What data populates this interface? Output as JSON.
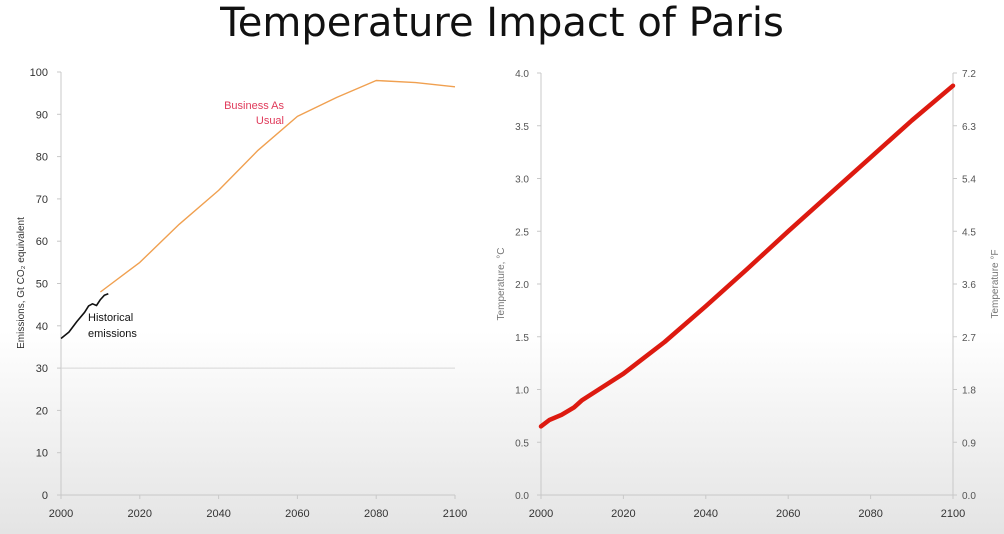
{
  "slide": {
    "title": "Temperature Impact of Paris"
  },
  "chart_data": [
    {
      "type": "line",
      "title": "",
      "xlabel": "",
      "ylabel": "Emissions, Gt CO₂ equivalent",
      "xlim": [
        2000,
        2100
      ],
      "ylim": [
        0,
        100
      ],
      "x_ticks": [
        2000,
        2020,
        2040,
        2060,
        2080,
        2100
      ],
      "y_ticks": [
        0,
        10,
        20,
        30,
        40,
        50,
        60,
        70,
        80,
        90,
        100
      ],
      "reference_line": 30,
      "series": [
        {
          "name": "Historical emissions",
          "label_lines": [
            "Historical",
            "emissions"
          ],
          "color": "#111111",
          "x": [
            2000,
            2002,
            2004,
            2006,
            2007,
            2008,
            2009,
            2010,
            2011,
            2012
          ],
          "y": [
            37,
            38.5,
            41,
            43.2,
            44.7,
            45.2,
            44.8,
            46.2,
            47.2,
            47.6
          ]
        },
        {
          "name": "Business As Usual",
          "label_lines": [
            "Business As",
            "Usual"
          ],
          "color": "#f0a050",
          "label_color": "#e03a5a",
          "x": [
            2010,
            2020,
            2030,
            2040,
            2050,
            2060,
            2070,
            2080,
            2090,
            2100
          ],
          "y": [
            48,
            55,
            64,
            72,
            81.5,
            89.5,
            94,
            98,
            97.5,
            96.5
          ]
        }
      ]
    },
    {
      "type": "line",
      "title": "",
      "xlabel": "",
      "ylabel": "Temperature, °C",
      "y2label": "Temperature °F",
      "xlim": [
        2000,
        2100
      ],
      "ylim": [
        0,
        4
      ],
      "y2lim": [
        0,
        7.2
      ],
      "x_ticks": [
        2000,
        2020,
        2040,
        2060,
        2080,
        2100
      ],
      "y_ticks": [
        "0.0",
        "0.5",
        "1.0",
        "1.5",
        "2.0",
        "2.5",
        "3.0",
        "3.5",
        "4.0"
      ],
      "y2_ticks": [
        "0.0",
        "0.9",
        "1.8",
        "2.7",
        "3.6",
        "4.5",
        "5.4",
        "6.3",
        "7.2"
      ],
      "series": [
        {
          "name": "Temperature",
          "color": "#dd1a10",
          "x": [
            2000,
            2002,
            2005,
            2008,
            2010,
            2020,
            2030,
            2040,
            2050,
            2060,
            2070,
            2080,
            2090,
            2100
          ],
          "y": [
            0.65,
            0.71,
            0.76,
            0.83,
            0.9,
            1.15,
            1.45,
            1.79,
            2.14,
            2.5,
            2.85,
            3.2,
            3.55,
            3.88
          ]
        }
      ]
    }
  ]
}
